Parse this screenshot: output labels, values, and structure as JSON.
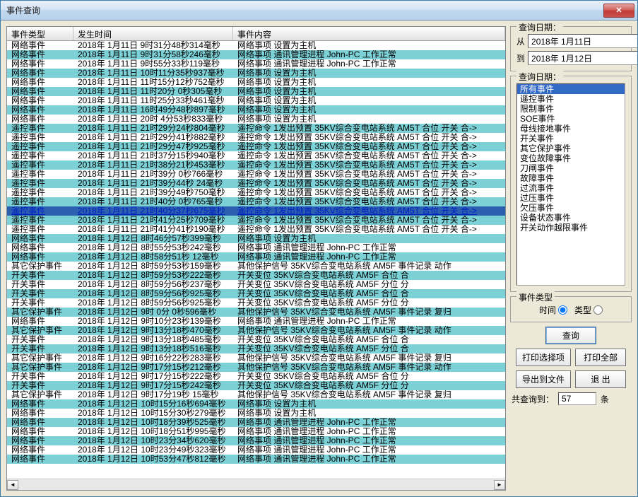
{
  "window": {
    "title": "事件查询"
  },
  "columns": {
    "type": "事件类型",
    "time": "发生时间",
    "content": "事件内容"
  },
  "colors": {
    "row_alt_bg": "#7cd1d7",
    "row_bg": "#ffffff",
    "selected_bg": "#2b5fb0",
    "link_color": "#0020c0",
    "window_bg": "#ece9d8",
    "titlebar_gradient": [
      "#e8f1fb",
      "#b8d2ec"
    ],
    "close_btn_gradient": [
      "#e5a3a1",
      "#c94f4b"
    ]
  },
  "rows": [
    {
      "type": "网络事件",
      "time": "2018年 1月11日  9时31分48秒314毫秒",
      "content": "网络事项  设置为主机",
      "cls": "a"
    },
    {
      "type": "网络事件",
      "time": "2018年 1月11日  9时31分58秒246毫秒",
      "content": "网络事项 通讯管理进程 John-PC 工作正常",
      "cls": "b"
    },
    {
      "type": "网络事件",
      "time": "2018年 1月11日  9时55分33秒119毫秒",
      "content": "网络事项 通讯管理进程 John-PC 工作正常",
      "cls": "a"
    },
    {
      "type": "网络事件",
      "time": "2018年 1月11日 10时11分35秒937毫秒",
      "content": "网络事项  设置为主机",
      "cls": "b"
    },
    {
      "type": "网络事件",
      "time": "2018年 1月11日 11时15分12秒752毫秒",
      "content": "网络事项  设置为主机",
      "cls": "a"
    },
    {
      "type": "网络事件",
      "time": "2018年 1月11日 11时20分 0秒305毫秒",
      "content": "网络事项  设置为主机",
      "cls": "b"
    },
    {
      "type": "网络事件",
      "time": "2018年 1月11日 11时25分33秒461毫秒",
      "content": "网络事项  设置为主机",
      "cls": "a"
    },
    {
      "type": "网络事件",
      "time": "2018年 1月11日 16时49分48秒897毫秒",
      "content": "网络事项  设置为主机",
      "cls": "b"
    },
    {
      "type": "网络事件",
      "time": "2018年 1月11日 20时 4分53秒833毫秒",
      "content": "网络事项  设置为主机",
      "cls": "a"
    },
    {
      "type": "遥控事件",
      "time": "2018年 1月11日 21时29分24秒804毫秒",
      "content": "遥控命令  1发出预置 35KV综合变电站系统 AM5T 合位 开关 合->",
      "cls": "b"
    },
    {
      "type": "遥控事件",
      "time": "2018年 1月11日 21时29分41秒882毫秒",
      "content": "遥控命令  1发出预置 35KV综合变电站系统 AM5T 合位 开关 合->",
      "cls": "a"
    },
    {
      "type": "遥控事件",
      "time": "2018年 1月11日 21时29分47秒925毫秒",
      "content": "遥控命令  1发出预置 35KV综合变电站系统 AM5T 合位 开关 合->",
      "cls": "b"
    },
    {
      "type": "遥控事件",
      "time": "2018年 1月11日 21时37分15秒940毫秒",
      "content": "遥控命令  1发出预置 35KV综合变电站系统 AM5T 合位 开关 合->",
      "cls": "a"
    },
    {
      "type": "遥控事件",
      "time": "2018年 1月11日 21时38分21秒453毫秒",
      "content": "遥控命令  1发出预置 35KV综合变电站系统 AM5T 合位 开关 合->",
      "cls": "b"
    },
    {
      "type": "遥控事件",
      "time": "2018年 1月11日 21时39分 0秒766毫秒",
      "content": "遥控命令  1发出预置 35KV综合变电站系统 AM5T 合位 开关 合->",
      "cls": "a"
    },
    {
      "type": "遥控事件",
      "time": "2018年 1月11日 21时39分44秒 24毫秒",
      "content": "遥控命令  1发出预置 35KV综合变电站系统 AM5T 合位 开关 合->",
      "cls": "b"
    },
    {
      "type": "遥控事件",
      "time": "2018年 1月11日 21时39分49秒750毫秒",
      "content": "遥控命令  1发出预置 35KV综合变电站系统 AM5T 合位 开关 合->",
      "cls": "a"
    },
    {
      "type": "遥控事件",
      "time": "2018年 1月11日 21时40分 0秒765毫秒",
      "content": "遥控命令  1发出预置 35KV综合变电站系统 AM5T 合位 开关 合->",
      "cls": "b"
    },
    {
      "type": "遥控事件",
      "time": "2018年 1月11日 21时40分37秒675毫秒",
      "content": "遥控命令  1发出预置 35KV综合变电站系统 AM5T 合位 开关 合->",
      "cls": "sel",
      "link": true
    },
    {
      "type": "遥控事件",
      "time": "2018年 1月11日 21时41分25秒709毫秒",
      "content": "遥控命令  1发出预置 35KV综合变电站系统 AM5T 合位 开关 合->",
      "cls": "b"
    },
    {
      "type": "遥控事件",
      "time": "2018年 1月11日 21时41分41秒190毫秒",
      "content": "遥控命令  1发出预置 35KV综合变电站系统 AM5T 合位 开关 合->",
      "cls": "a"
    },
    {
      "type": "网络事件",
      "time": "2018年 1月12日  8时46分57秒399毫秒",
      "content": "网络事项  设置为主机",
      "cls": "b"
    },
    {
      "type": "网络事件",
      "time": "2018年 1月12日  8时55分53秒242毫秒",
      "content": "网络事项 通讯管理进程 John-PC 工作正常",
      "cls": "a"
    },
    {
      "type": "网络事件",
      "time": "2018年 1月12日  8时58分51秒 12毫秒",
      "content": "网络事项 通讯管理进程 John-PC 工作正常",
      "cls": "b"
    },
    {
      "type": "其它保护事件",
      "time": "2018年 1月12日  8时59分53秒159毫秒",
      "content": "其他保护信号 35KV综合变电站系统 AM5F 事件记录   动作",
      "cls": "a"
    },
    {
      "type": "开关事件",
      "time": "2018年 1月12日  8时59分53秒222毫秒",
      "content": "开关变位  35KV综合变电站系统 AM5F 合位   合",
      "cls": "b"
    },
    {
      "type": "开关事件",
      "time": "2018年 1月12日  8时59分56秒237毫秒",
      "content": "开关变位  35KV综合变电站系统 AM5F 分位   分",
      "cls": "a"
    },
    {
      "type": "开关事件",
      "time": "2018年 1月12日  8时59分56秒925毫秒",
      "content": "开关变位  35KV综合变电站系统 AM5F 合位   合",
      "cls": "b"
    },
    {
      "type": "开关事件",
      "time": "2018年 1月12日  8时59分56秒925毫秒",
      "content": "开关变位  35KV综合变电站系统 AM5F 分位   分",
      "cls": "a"
    },
    {
      "type": "其它保护事件",
      "time": "2018年 1月12日  9时 0分 0秒596毫秒",
      "content": "其他保护信号 35KV综合变电站系统 AM5F 事件记录   复归",
      "cls": "b"
    },
    {
      "type": "网络事件",
      "time": "2018年 1月12日  9时10分23秒139毫秒",
      "content": "网络事项 通讯管理进程 John-PC 工作正常",
      "cls": "a"
    },
    {
      "type": "其它保护事件",
      "time": "2018年 1月12日  9时13分18秒470毫秒",
      "content": "其他保护信号 35KV综合变电站系统 AM5F 事件记录   动作",
      "cls": "b"
    },
    {
      "type": "开关事件",
      "time": "2018年 1月12日  9时13分18秒485毫秒",
      "content": "开关变位  35KV综合变电站系统 AM5F 合位   合",
      "cls": "a"
    },
    {
      "type": "开关事件",
      "time": "2018年 1月12日  9时13分18秒516毫秒",
      "content": "开关变位  35KV综合变电站系统 AM5F 分位   合",
      "cls": "b"
    },
    {
      "type": "其它保护事件",
      "time": "2018年 1月12日  9时16分22秒283毫秒",
      "content": "其他保护信号 35KV综合变电站系统 AM5F 事件记录   复归",
      "cls": "a"
    },
    {
      "type": "其它保护事件",
      "time": "2018年 1月12日  9时17分15秒212毫秒",
      "content": "其他保护信号 35KV综合变电站系统 AM5F 事件记录   动作",
      "cls": "b"
    },
    {
      "type": "开关事件",
      "time": "2018年 1月12日  9时17分15秒222毫秒",
      "content": "开关变位  35KV综合变电站系统 AM5F 合位   分",
      "cls": "a"
    },
    {
      "type": "开关事件",
      "time": "2018年 1月12日  9时17分15秒242毫秒",
      "content": "开关变位  35KV综合变电站系统 AM5F 分位   分",
      "cls": "b"
    },
    {
      "type": "其它保护事件",
      "time": "2018年 1月12日  9时17分19秒 15毫秒",
      "content": "其他保护信号 35KV综合变电站系统 AM5F 事件记录   复归",
      "cls": "a"
    },
    {
      "type": "网络事件",
      "time": "2018年 1月12日 10时15分16秒694毫秒",
      "content": "网络事项  设置为主机",
      "cls": "b"
    },
    {
      "type": "网络事件",
      "time": "2018年 1月12日 10时15分30秒279毫秒",
      "content": "网络事项  设置为主机",
      "cls": "a"
    },
    {
      "type": "网络事件",
      "time": "2018年 1月12日 10时18分39秒525毫秒",
      "content": "网络事项 通讯管理进程 John-PC 工作正常",
      "cls": "b"
    },
    {
      "type": "网络事件",
      "time": "2018年 1月12日 10时18分51秒995毫秒",
      "content": "网络事项 通讯管理进程 John-PC 工作正常",
      "cls": "a"
    },
    {
      "type": "网络事件",
      "time": "2018年 1月12日 10时23分34秒620毫秒",
      "content": "网络事项 通讯管理进程 John-PC 工作正常",
      "cls": "b"
    },
    {
      "type": "网络事件",
      "time": "2018年 1月12日 10时23分49秒323毫秒",
      "content": "网络事项 通讯管理进程 John-PC 工作正常",
      "cls": "a"
    },
    {
      "type": "网络事件",
      "time": "2018年 1月12日 10时53分47秒812毫秒",
      "content": "网络事项 通讯管理进程 John-PC 工作正常",
      "cls": "b"
    }
  ],
  "dateGroup": {
    "title": "查询日期：",
    "fromLabel": "从",
    "toLabel": "到",
    "fromDate": "2018年 1月11日",
    "toDate": "2018年 1月12日"
  },
  "filterGroup": {
    "title": "查询日期：",
    "items": [
      {
        "label": "所有事件",
        "selected": true
      },
      {
        "label": "遥控事件"
      },
      {
        "label": "限制事件"
      },
      {
        "label": "SOE事件"
      },
      {
        "label": "母线接地事件"
      },
      {
        "label": "开关事件"
      },
      {
        "label": "其它保护事件"
      },
      {
        "label": "变位故障事件"
      },
      {
        "label": "刀闸事件"
      },
      {
        "label": "故障事件"
      },
      {
        "label": "过流事件"
      },
      {
        "label": "过压事件"
      },
      {
        "label": "欠压事件"
      },
      {
        "label": "设备状态事件"
      },
      {
        "label": "开关动作越限事件"
      }
    ]
  },
  "typeGroup": {
    "title": "事件类型",
    "timeLabel": "时间",
    "classLabel": "类型"
  },
  "buttons": {
    "query": "查询",
    "printSel": "打印选择项",
    "printAll": "打印全部",
    "export": "导出到文件",
    "exit": "退  出"
  },
  "count": {
    "label": "共查询到：",
    "value": "57",
    "unit": "条"
  }
}
